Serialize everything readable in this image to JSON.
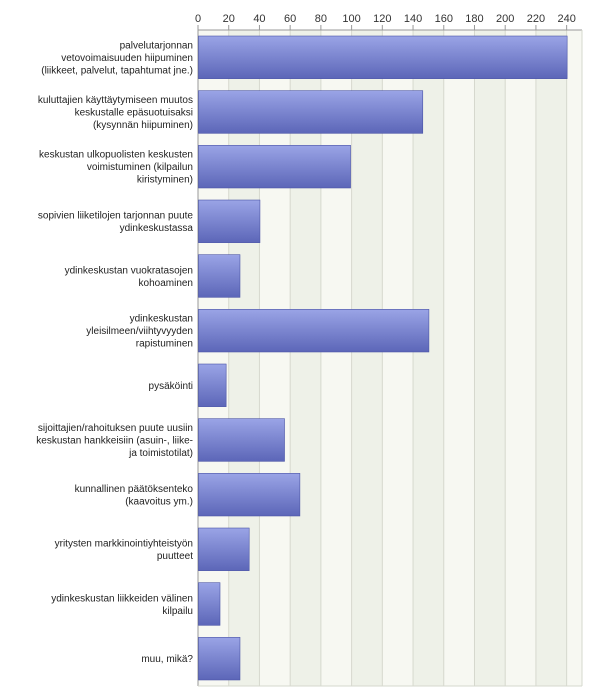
{
  "chart_data": {
    "type": "bar",
    "orientation": "horizontal",
    "title": "",
    "xlabel": "",
    "ylabel": "",
    "xlim": [
      0,
      250
    ],
    "ticks": [
      "0",
      "20",
      "40",
      "60",
      "80",
      "100",
      "120",
      "140",
      "160",
      "180",
      "200",
      "220",
      "240"
    ],
    "grid": true,
    "categories": [
      [
        "palvelutarjonnan",
        "vetovoimaisuuden hiipuminen",
        "(liikkeet, palvelut, tapahtumat jne.)"
      ],
      [
        "kuluttajien käyttäytymiseen muutos",
        "keskustalle epäsuotuisaksi",
        "(kysynnän hiipuminen)"
      ],
      [
        "keskustan ulkopuolisten keskusten",
        "voimistuminen (kilpailun",
        "kiristyminen)"
      ],
      [
        "sopivien liiketilojen tarjonnan puute",
        "ydinkeskustassa"
      ],
      [
        "ydinkeskustan vuokratasojen",
        "kohoaminen"
      ],
      [
        "ydinkeskustan",
        "yleisilmeen/viihtyvyyden",
        "rapistuminen"
      ],
      [
        "pysäköinti"
      ],
      [
        "sijoittajien/rahoituksen puute uusiin",
        "keskustan hankkeisiin (asuin-, liike-",
        "ja toimistotilat)"
      ],
      [
        "kunnallinen päätöksenteko",
        "(kaavoitus ym.)"
      ],
      [
        "yritysten markkinointiyhteistyön",
        "puutteet"
      ],
      [
        "ydinkeskustan liikkeiden välinen",
        "kilpailu"
      ],
      [
        "muu, mikä?"
      ]
    ],
    "values": [
      240,
      146,
      99,
      40,
      27,
      150,
      18,
      56,
      66,
      33,
      14,
      27
    ],
    "colors": {
      "bar_top": "#9aa4e6",
      "bar_bottom": "#5c66b8",
      "bar_edge": "#4a54a6",
      "plot_bg": "#eef1e8",
      "band_alt": "#f7f8f2",
      "grid": "#d6d8ce",
      "axis": "#999999"
    }
  }
}
